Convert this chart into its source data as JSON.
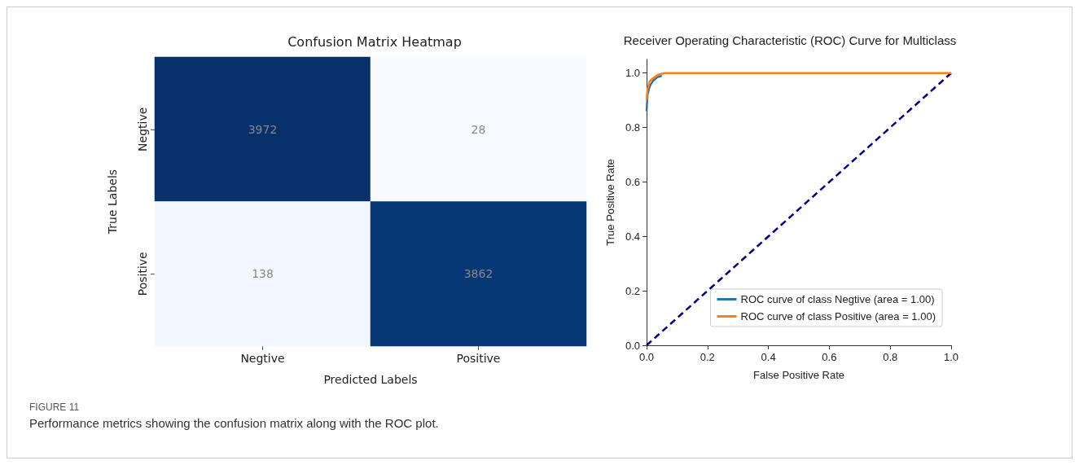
{
  "chart_data": [
    {
      "type": "heatmap",
      "title": "Confusion Matrix Heatmap",
      "xlabel": "Predicted Labels",
      "ylabel": "True Labels",
      "categories": [
        "Negtive",
        "Positive"
      ],
      "y_categories": [
        "Negtive",
        "Positive"
      ],
      "cells": [
        [
          3972,
          28
        ],
        [
          138,
          3862
        ]
      ],
      "data_labels": true,
      "annotations": [
        "FIGURE 11",
        "Performance metrics showing the confusion matrix along with the ROC plot."
      ]
    },
    {
      "type": "line",
      "title": "Receiver Operating Characteristic (ROC) Curve for Multiclass",
      "xlabel": "False Positive Rate",
      "ylabel": "True Positive Rate",
      "xlim": [
        0,
        1
      ],
      "ylim": [
        0,
        1.05
      ],
      "xticks": [
        {
          "value": 0,
          "label": "0.0"
        },
        0.2,
        0.4,
        0.6,
        0.8,
        {
          "value": 1,
          "label": "1.0"
        }
      ],
      "yticks": [
        {
          "value": 0,
          "label": "0.0"
        },
        0.2,
        0.4,
        0.6,
        0.8,
        {
          "value": 1,
          "label": "1.0"
        }
      ],
      "grid": false,
      "legend": "bottom right",
      "marker": "none",
      "series": [
        {
          "name": "ROC curve of class Negtive (area = 1.00)",
          "color": "#1f77b4",
          "line_style": "solid",
          "x": [
            0,
            0.003,
            0.01,
            0.02,
            0.035,
            0.05
          ],
          "values": [
            0.86,
            0.92,
            0.95,
            0.97,
            0.985,
            0.99
          ]
        },
        {
          "name": "ROC curve of class Positive (area = 1.00)",
          "color": "#ff7f0e",
          "line_style": "solid",
          "x": [
            0,
            0.003,
            0.01,
            0.02,
            0.04,
            0.06,
            1
          ],
          "values": [
            0.9,
            0.94,
            0.97,
            0.98,
            0.995,
            1,
            1
          ]
        },
        {
          "color": "#00008b",
          "line_style": "dashed",
          "x": [
            0,
            1
          ],
          "values": [
            0,
            1
          ]
        }
      ]
    }
  ]
}
